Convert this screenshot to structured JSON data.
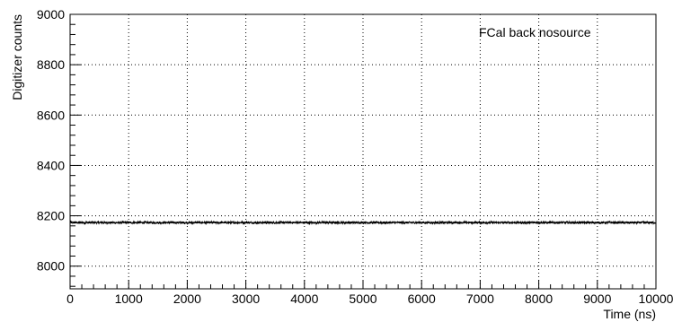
{
  "chart_data": {
    "type": "line",
    "legend_text": "FCal back nosource",
    "legend_placement": "top-right",
    "xlabel": "Time (ns)",
    "ylabel": "Digitizer counts",
    "xlim": [
      0,
      10000
    ],
    "ylim": [
      7910,
      9000
    ],
    "xticks": [
      0,
      1000,
      2000,
      3000,
      4000,
      5000,
      6000,
      7000,
      8000,
      9000,
      10000
    ],
    "yticks": [
      8000,
      8200,
      8400,
      8600,
      8800,
      9000
    ],
    "x_minor_step": 200,
    "y_minor_step": 40,
    "grid": true,
    "series": [
      {
        "baseline": 8173,
        "noise_amplitude": 4,
        "sample_step_ns": 4,
        "color": "#000000"
      }
    ]
  }
}
